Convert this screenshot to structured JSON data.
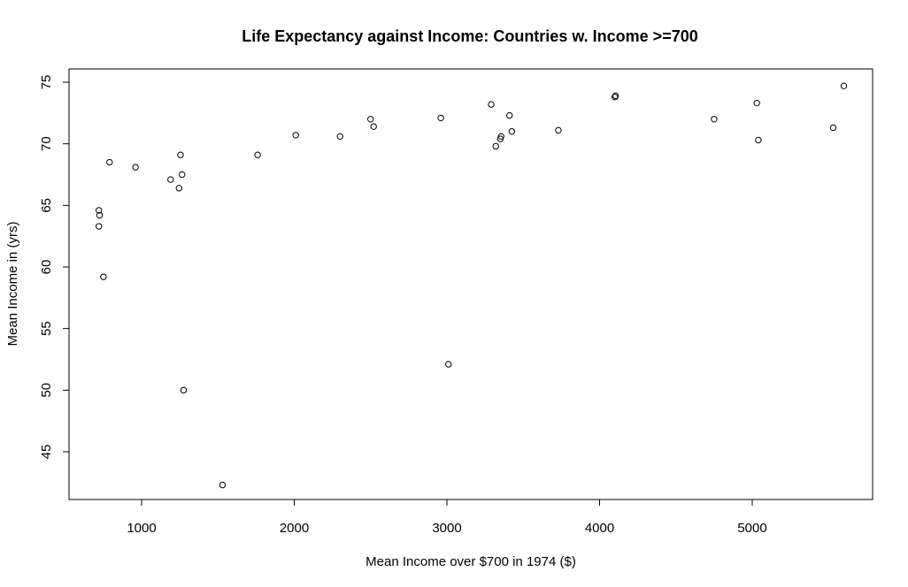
{
  "chart_data": {
    "type": "scatter",
    "title": "Life Expectancy against Income: Countries w. Income >=700",
    "xlabel": "Mean Income over $700 in 1974 ($)",
    "ylabel": "Mean Income in (yrs)",
    "xlim": [
      700,
      5600
    ],
    "ylim": [
      42,
      75
    ],
    "xticks": [
      1000,
      2000,
      3000,
      4000,
      5000
    ],
    "yticks": [
      45,
      50,
      55,
      60,
      65,
      70,
      75
    ],
    "grid": false,
    "legend": false,
    "points": [
      {
        "x": 720,
        "y": 64.6
      },
      {
        "x": 725,
        "y": 64.2
      },
      {
        "x": 720,
        "y": 63.3
      },
      {
        "x": 750,
        "y": 59.2
      },
      {
        "x": 790,
        "y": 68.5
      },
      {
        "x": 960,
        "y": 68.1
      },
      {
        "x": 1190,
        "y": 67.1
      },
      {
        "x": 1245,
        "y": 66.4
      },
      {
        "x": 1255,
        "y": 69.1
      },
      {
        "x": 1265,
        "y": 67.5
      },
      {
        "x": 1275,
        "y": 50.0
      },
      {
        "x": 1530,
        "y": 42.3
      },
      {
        "x": 1760,
        "y": 69.1
      },
      {
        "x": 2010,
        "y": 70.7
      },
      {
        "x": 2300,
        "y": 70.6
      },
      {
        "x": 2500,
        "y": 72.0
      },
      {
        "x": 2520,
        "y": 71.4
      },
      {
        "x": 2960,
        "y": 72.1
      },
      {
        "x": 3010,
        "y": 52.1
      },
      {
        "x": 3290,
        "y": 73.2
      },
      {
        "x": 3320,
        "y": 69.8
      },
      {
        "x": 3350,
        "y": 70.4
      },
      {
        "x": 3355,
        "y": 70.6
      },
      {
        "x": 3410,
        "y": 72.3
      },
      {
        "x": 3425,
        "y": 71.0
      },
      {
        "x": 3730,
        "y": 71.1
      },
      {
        "x": 4100,
        "y": 73.8
      },
      {
        "x": 4105,
        "y": 73.9
      },
      {
        "x": 4750,
        "y": 72.0
      },
      {
        "x": 5030,
        "y": 73.3
      },
      {
        "x": 5040,
        "y": 70.3
      },
      {
        "x": 5530,
        "y": 71.3
      },
      {
        "x": 5600,
        "y": 74.7
      }
    ]
  }
}
